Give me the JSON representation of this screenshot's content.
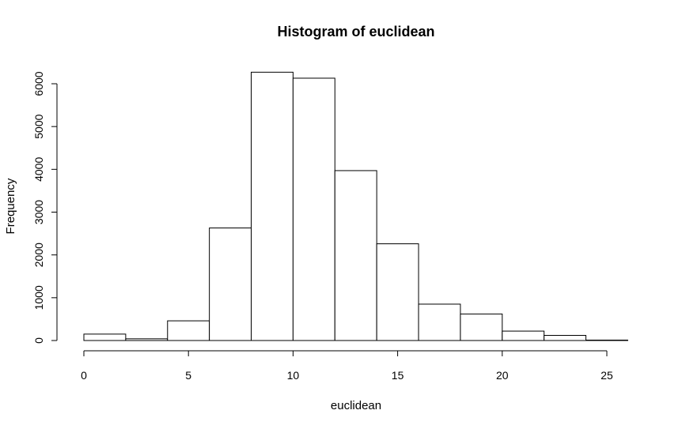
{
  "chart_data": {
    "type": "bar",
    "title": "Histogram of euclidean",
    "xlabel": "euclidean",
    "ylabel": "Frequency",
    "bins": [
      {
        "start": 0,
        "end": 2,
        "count": 150
      },
      {
        "start": 2,
        "end": 4,
        "count": 40
      },
      {
        "start": 4,
        "end": 6,
        "count": 460
      },
      {
        "start": 6,
        "end": 8,
        "count": 2630
      },
      {
        "start": 8,
        "end": 10,
        "count": 6270
      },
      {
        "start": 10,
        "end": 12,
        "count": 6130
      },
      {
        "start": 12,
        "end": 14,
        "count": 3970
      },
      {
        "start": 14,
        "end": 16,
        "count": 2260
      },
      {
        "start": 16,
        "end": 18,
        "count": 850
      },
      {
        "start": 18,
        "end": 20,
        "count": 620
      },
      {
        "start": 20,
        "end": 22,
        "count": 220
      },
      {
        "start": 22,
        "end": 24,
        "count": 120
      },
      {
        "start": 24,
        "end": 26,
        "count": 10
      }
    ],
    "x_ticks": [
      0,
      5,
      10,
      15,
      20,
      25
    ],
    "y_ticks": [
      0,
      1000,
      2000,
      3000,
      4000,
      5000,
      6000
    ],
    "xlim": [
      0,
      26
    ],
    "ylim": [
      0,
      6000
    ],
    "grid": false,
    "legend": "none",
    "colors": {
      "bar_fill": "#ffffff",
      "bar_stroke": "#000000"
    }
  }
}
